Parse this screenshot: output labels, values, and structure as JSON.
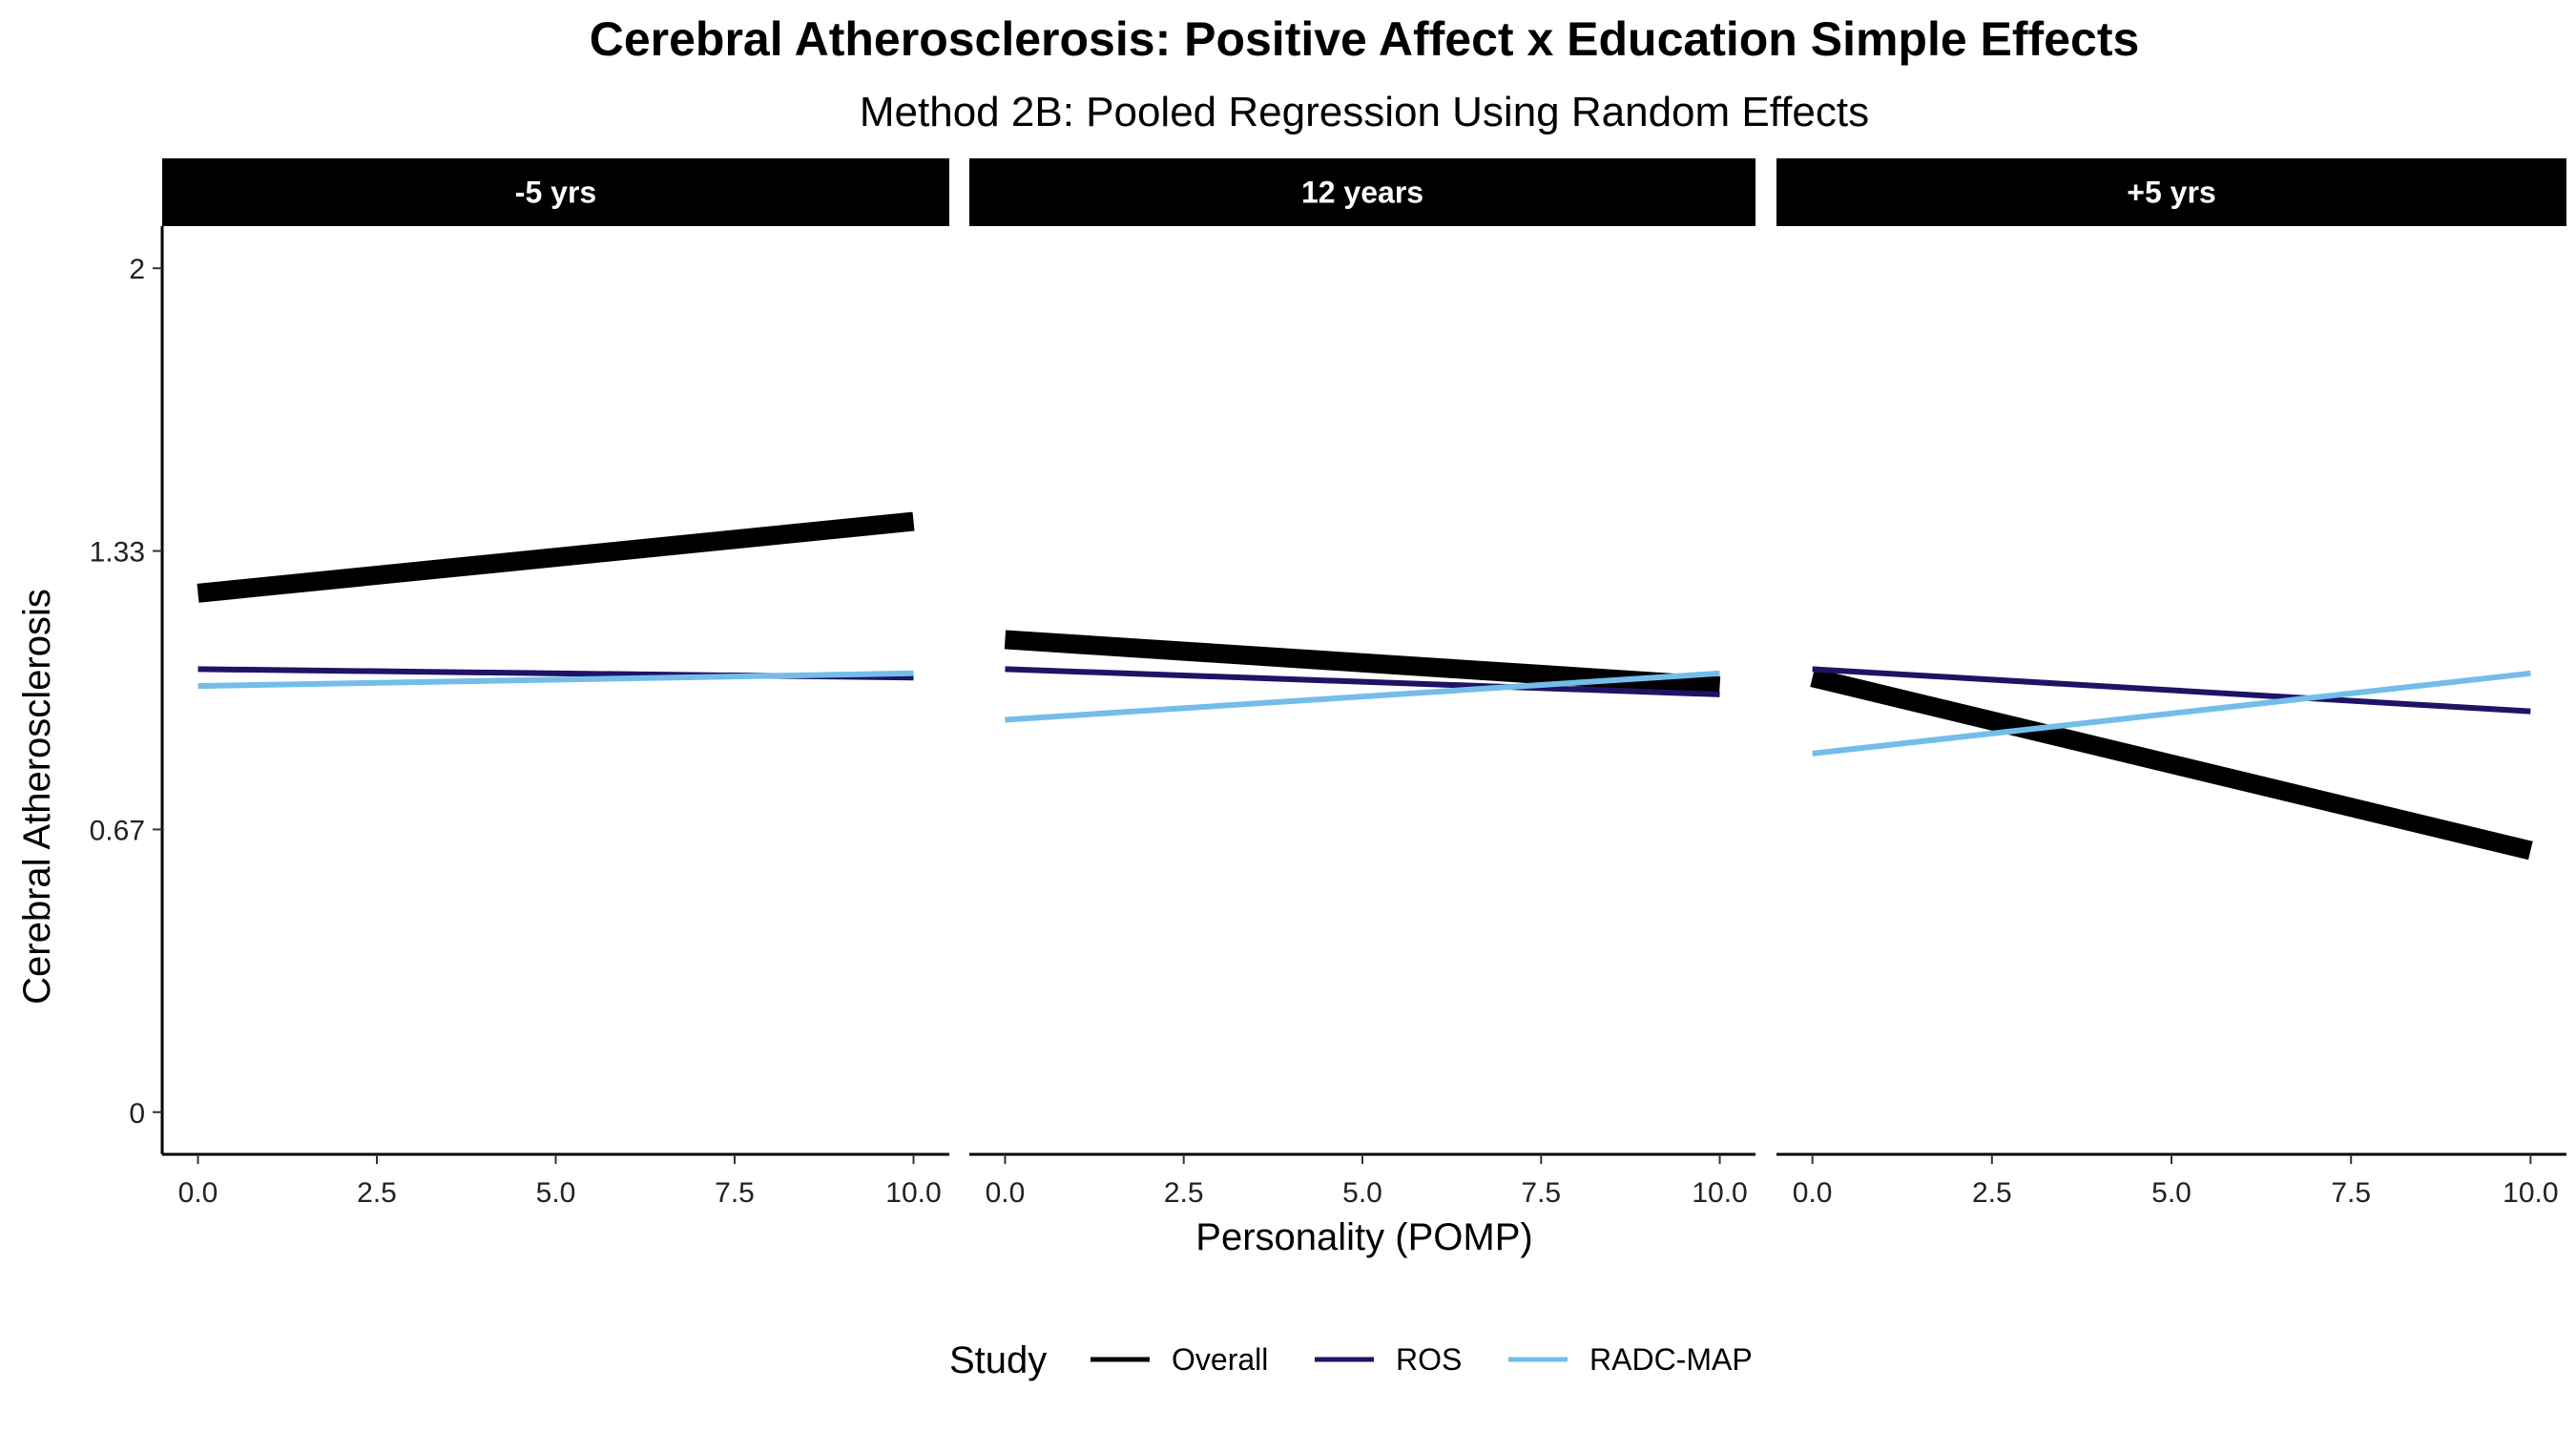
{
  "chart_data": {
    "type": "line",
    "title": "Cerebral Atherosclerosis: Positive Affect x Education Simple Effects",
    "subtitle": "Method 2B: Pooled Regression Using Random Effects",
    "xlabel": "Personality (POMP)",
    "ylabel": "Cerebral Atherosclerosis",
    "xlim": [
      -0.5,
      10.5
    ],
    "ylim": [
      -0.1,
      2.1
    ],
    "x_ticks": [
      0,
      2.5,
      5,
      7.5,
      10
    ],
    "x_tick_labels": [
      "0.0",
      "2.5",
      "5.0",
      "7.5",
      "10.0"
    ],
    "y_ticks": [
      0,
      0.67,
      1.33,
      2
    ],
    "y_tick_labels": [
      "0",
      "0.67",
      "1.33",
      "2"
    ],
    "grid": false,
    "legend": {
      "title": "Study",
      "position": "bottom",
      "entries": [
        "Overall",
        "ROS",
        "RADC-MAP"
      ]
    },
    "series_styles": [
      {
        "name": "Overall",
        "color": "#000000",
        "width": 20
      },
      {
        "name": "ROS",
        "color": "#1f1366",
        "width": 6
      },
      {
        "name": "RADC-MAP",
        "color": "#74bde9",
        "width": 6
      }
    ],
    "panels": [
      {
        "label": "-5 yrs",
        "series": [
          {
            "name": "Overall",
            "x": [
              0,
              10
            ],
            "y": [
              1.23,
              1.4
            ]
          },
          {
            "name": "ROS",
            "x": [
              0,
              10
            ],
            "y": [
              1.05,
              1.03
            ]
          },
          {
            "name": "RADC-MAP",
            "x": [
              0,
              10
            ],
            "y": [
              1.01,
              1.04
            ]
          }
        ]
      },
      {
        "label": "12 years",
        "series": [
          {
            "name": "Overall",
            "x": [
              0,
              10
            ],
            "y": [
              1.12,
              1.01
            ]
          },
          {
            "name": "ROS",
            "x": [
              0,
              10
            ],
            "y": [
              1.05,
              0.99
            ]
          },
          {
            "name": "RADC-MAP",
            "x": [
              0,
              10
            ],
            "y": [
              0.93,
              1.04
            ]
          }
        ]
      },
      {
        "label": "+5 yrs",
        "series": [
          {
            "name": "Overall",
            "x": [
              0,
              10
            ],
            "y": [
              1.03,
              0.62
            ]
          },
          {
            "name": "ROS",
            "x": [
              0,
              10
            ],
            "y": [
              1.05,
              0.95
            ]
          },
          {
            "name": "RADC-MAP",
            "x": [
              0,
              10
            ],
            "y": [
              0.85,
              1.04
            ]
          }
        ]
      }
    ]
  }
}
